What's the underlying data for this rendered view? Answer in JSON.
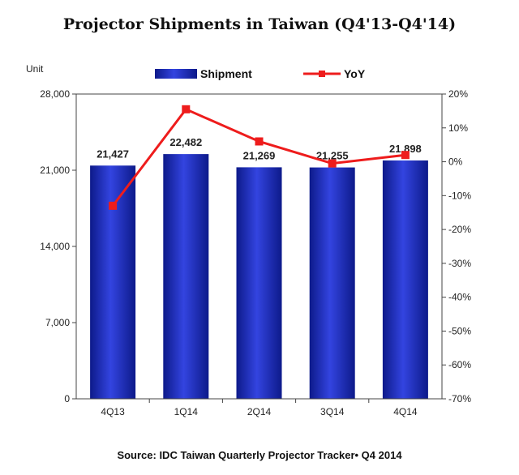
{
  "chart_data": {
    "type": "bar+line",
    "title": "Projector Shipments in Taiwan (Q4'13-Q4'14)",
    "categories": [
      "4Q13",
      "1Q14",
      "2Q14",
      "3Q14",
      "4Q14"
    ],
    "y_left": {
      "label": "Unit",
      "range": [
        0,
        28000
      ],
      "ticks": [
        0,
        7000,
        14000,
        21000,
        28000
      ],
      "tick_labels": [
        "0",
        "7,000",
        "14,000",
        "21,000",
        "28,000"
      ]
    },
    "y_right": {
      "range": [
        -70,
        20
      ],
      "ticks": [
        -70,
        -60,
        -50,
        -40,
        -30,
        -20,
        -10,
        0,
        10,
        20
      ],
      "tick_labels": [
        "-70%",
        "-60%",
        "-50%",
        "-40%",
        "-30%",
        "-20%",
        "-10%",
        "0%",
        "10%",
        "20%"
      ]
    },
    "series": [
      {
        "name": "Shipment",
        "type": "bar",
        "axis": "left",
        "color": "#2233cc",
        "values": [
          21427,
          22482,
          21269,
          21255,
          21898
        ],
        "data_labels": [
          "21,427",
          "22,482",
          "21,269",
          "21,255",
          "21,898"
        ]
      },
      {
        "name": "YoY",
        "type": "line",
        "axis": "right",
        "color": "#ee1c1c",
        "values": [
          -13,
          15.5,
          6,
          -0.5,
          2
        ]
      }
    ],
    "legend_position": "top",
    "grid": false
  },
  "source": "Source: IDC Taiwan Quarterly Projector Tracker• Q4 2014"
}
